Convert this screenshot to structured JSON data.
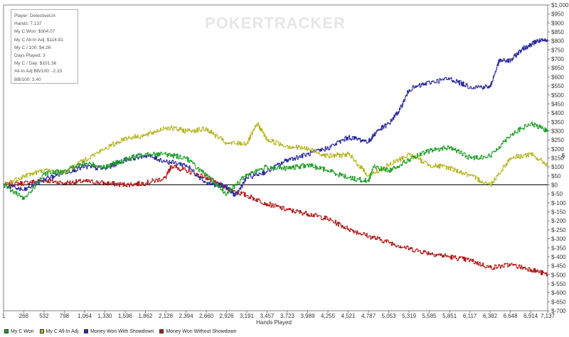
{
  "brand": {
    "watermark": "POKERTRACKER"
  },
  "info_box": {
    "lines": [
      "Player: DetectiveUA",
      "Hands: 7,137",
      "My C Won: $304.07",
      "My C All-In Adj: $114.81",
      "My C / 100: $4.26",
      "Days Played: 3",
      "My C / Day: $101.36",
      "All-In Adj BB/100: -2.33",
      "BB/100: 3.40"
    ]
  },
  "chart_data": {
    "type": "line",
    "title": "",
    "xlabel": "Hands Played",
    "ylabel": "$",
    "xlim": [
      1,
      7137
    ],
    "ylim": [
      -700,
      1000
    ],
    "x_ticks": [
      1,
      266,
      532,
      798,
      1064,
      1330,
      1596,
      1862,
      2128,
      2394,
      2660,
      2926,
      3191,
      3457,
      3723,
      3989,
      4255,
      4521,
      4787,
      5053,
      5319,
      5585,
      5851,
      6117,
      6382,
      6648,
      6914,
      7137
    ],
    "x_tick_labels": [
      "1",
      "266",
      "532",
      "798",
      "1,064",
      "1,330",
      "1,596",
      "1,862",
      "2,128",
      "2,394",
      "2,660",
      "2,926",
      "3,191",
      "3,457",
      "3,723",
      "3,989",
      "4,255",
      "4,521",
      "4,787",
      "5,053",
      "5,319",
      "5,585",
      "5,851",
      "6,117",
      "6,382",
      "6,648",
      "6,914",
      "7,137"
    ],
    "y_ticks": [
      1000,
      950,
      900,
      850,
      800,
      750,
      700,
      650,
      600,
      550,
      500,
      450,
      400,
      350,
      300,
      250,
      200,
      150,
      100,
      50,
      0,
      -50,
      -100,
      -150,
      -200,
      -250,
      -300,
      -350,
      -400,
      -450,
      -500,
      -550,
      -600,
      -650,
      -700
    ],
    "y_tick_labels": [
      "$1,000",
      "$950",
      "$900",
      "$850",
      "$800",
      "$750",
      "$700",
      "$650",
      "$600",
      "$550",
      "$500",
      "$450",
      "$400",
      "$350",
      "$300",
      "$250",
      "$200",
      "$150",
      "$100",
      "$50",
      "$0",
      "$-50",
      "$-100",
      "$-150",
      "$-200",
      "$-250",
      "$-300",
      "$-350",
      "$-400",
      "$-450",
      "$-500",
      "$-550",
      "$-600",
      "$-650",
      "$-700"
    ],
    "zero_line": true,
    "grid": false,
    "legend_position": "bottom",
    "series": [
      {
        "name": "Money Won Without Showdown",
        "color": "#b01a1a",
        "x": [
          1,
          266,
          532,
          798,
          1064,
          1330,
          1596,
          1862,
          2128,
          2200,
          2394,
          2660,
          2926,
          3191,
          3457,
          3723,
          3989,
          4255,
          4521,
          4787,
          5053,
          5319,
          5585,
          5851,
          6117,
          6382,
          6648,
          6914,
          7137
        ],
        "y": [
          0,
          10,
          25,
          10,
          20,
          10,
          0,
          10,
          40,
          105,
          80,
          40,
          -20,
          -60,
          -105,
          -140,
          -160,
          -190,
          -245,
          -285,
          -320,
          -355,
          -380,
          -400,
          -420,
          -460,
          -445,
          -470,
          -500
        ]
      },
      {
        "name": "Money Won With Showdown",
        "color": "#2c2c9e",
        "x": [
          1,
          266,
          532,
          798,
          1064,
          1330,
          1596,
          1862,
          2128,
          2394,
          2660,
          2926,
          3040,
          3191,
          3457,
          3723,
          3989,
          4255,
          4521,
          4787,
          4900,
          5053,
          5200,
          5319,
          5585,
          5851,
          6117,
          6382,
          6500,
          6648,
          6800,
          6914,
          7000,
          7137
        ],
        "y": [
          0,
          -30,
          30,
          70,
          100,
          90,
          140,
          165,
          130,
          110,
          10,
          -10,
          -60,
          40,
          75,
          140,
          170,
          205,
          265,
          240,
          300,
          340,
          420,
          530,
          570,
          590,
          545,
          545,
          690,
          690,
          755,
          780,
          800,
          800
        ]
      },
      {
        "name": "My C All-In Adj",
        "color": "#b5b522",
        "x": [
          1,
          266,
          532,
          798,
          1064,
          1330,
          1596,
          1862,
          2128,
          2394,
          2660,
          2926,
          3191,
          3330,
          3457,
          3723,
          3989,
          4255,
          4521,
          4787,
          5053,
          5319,
          5585,
          5851,
          6117,
          6382,
          6648,
          6914,
          7137
        ],
        "y": [
          0,
          50,
          80,
          70,
          140,
          200,
          260,
          275,
          320,
          300,
          310,
          230,
          230,
          340,
          250,
          215,
          200,
          160,
          170,
          50,
          110,
          170,
          110,
          95,
          50,
          0,
          150,
          170,
          110
        ]
      },
      {
        "name": "My C Won",
        "color": "#22a02a",
        "x": [
          1,
          266,
          532,
          798,
          1064,
          1330,
          1596,
          1862,
          2128,
          2394,
          2660,
          2926,
          3191,
          3457,
          3723,
          3989,
          4255,
          4521,
          4787,
          4850,
          5053,
          5319,
          5585,
          5851,
          6117,
          6382,
          6648,
          6914,
          7137
        ],
        "y": [
          0,
          -80,
          60,
          80,
          120,
          100,
          140,
          175,
          170,
          150,
          50,
          -50,
          60,
          100,
          90,
          110,
          80,
          40,
          20,
          100,
          80,
          140,
          190,
          210,
          150,
          160,
          280,
          340,
          300
        ]
      }
    ]
  },
  "legend": [
    {
      "label": "My C Won",
      "color": "#22a02a"
    },
    {
      "label": "My C All-In Adj",
      "color": "#b5b522"
    },
    {
      "label": "Money Won With Showdown",
      "color": "#2c2c9e"
    },
    {
      "label": "Money Won Without Showdown",
      "color": "#b01a1a"
    }
  ]
}
